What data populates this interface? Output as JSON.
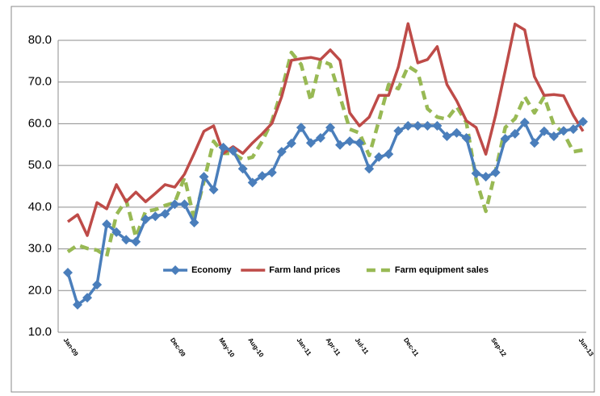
{
  "chart_data": {
    "type": "line",
    "categories": [
      "Jan-09",
      null,
      null,
      null,
      null,
      null,
      null,
      null,
      null,
      null,
      null,
      "Dec-09",
      null,
      null,
      null,
      null,
      "May-10",
      null,
      null,
      "Aug-10",
      null,
      null,
      null,
      null,
      "Jan-11",
      null,
      null,
      "Apr-11",
      null,
      null,
      "Jul-11",
      null,
      null,
      null,
      null,
      "Dec-11",
      null,
      null,
      null,
      null,
      null,
      null,
      null,
      null,
      "Sep-12",
      null,
      null,
      null,
      null,
      null,
      null,
      null,
      null,
      "Jun-13"
    ],
    "series": [
      {
        "name": "Economy",
        "color": "#4a7ebb",
        "marker": "diamond",
        "dashed": false,
        "values": [
          24.3,
          16.6,
          18.3,
          21.4,
          35.9,
          34.0,
          32.2,
          31.7,
          37.1,
          37.8,
          38.4,
          40.7,
          40.7,
          36.3,
          47.3,
          44.2,
          54.3,
          53.5,
          49.2,
          45.9,
          47.5,
          48.3,
          53.3,
          55.3,
          59.1,
          55.4,
          56.6,
          59.1,
          54.9,
          55.8,
          55.4,
          49.2,
          52.0,
          52.7,
          58.3,
          59.5,
          59.5,
          59.5,
          59.5,
          57.0,
          57.8,
          56.6,
          48.1,
          47.3,
          48.3,
          56.4,
          57.6,
          60.3,
          55.4,
          58.2,
          57.0,
          58.3,
          58.7,
          60.5
        ]
      },
      {
        "name": "Farm land prices",
        "color": "#be4b48",
        "marker": "none",
        "dashed": false,
        "values": [
          36.5,
          38.2,
          33.2,
          41.1,
          39.6,
          45.4,
          41.3,
          43.6,
          41.3,
          43.3,
          45.4,
          44.8,
          47.9,
          52.9,
          58.2,
          59.5,
          52.9,
          54.5,
          52.9,
          55.4,
          57.6,
          60.1,
          66.5,
          75.2,
          75.6,
          75.9,
          75.4,
          77.7,
          75.2,
          62.6,
          59.5,
          61.6,
          66.8,
          66.8,
          73.6,
          84.0,
          74.6,
          75.4,
          78.5,
          69.4,
          65.5,
          60.7,
          59.1,
          52.7,
          62.0,
          72.8,
          83.9,
          82.5,
          71.3,
          66.8,
          67.0,
          66.7,
          62.0,
          58.2
        ]
      },
      {
        "name": "Farm equipment sales",
        "color": "#98b954",
        "marker": "none",
        "dashed": true,
        "values": [
          29.3,
          30.9,
          30.1,
          29.7,
          28.2,
          38.2,
          41.7,
          32.8,
          39.0,
          39.4,
          40.4,
          41.1,
          47.1,
          37.1,
          46.2,
          55.8,
          52.9,
          52.9,
          51.4,
          52.0,
          55.8,
          60.7,
          68.0,
          77.1,
          74.2,
          65.5,
          75.2,
          74.2,
          66.5,
          58.7,
          57.8,
          52.4,
          60.7,
          69.4,
          68.4,
          73.8,
          72.3,
          63.6,
          61.6,
          61.1,
          64.1,
          60.3,
          46.7,
          39.0,
          48.7,
          59.1,
          61.2,
          66.5,
          62.6,
          66.5,
          59.7,
          57.8,
          53.3,
          53.7
        ]
      }
    ],
    "ylim": [
      10,
      80
    ],
    "yticks": [
      {
        "value": 10,
        "label": "10.0"
      },
      {
        "value": 20,
        "label": "20.0"
      },
      {
        "value": 30,
        "label": "30.0"
      },
      {
        "value": 40,
        "label": "40.0"
      },
      {
        "value": 50,
        "label": "50.0"
      },
      {
        "value": 60,
        "label": "60.0"
      },
      {
        "value": 70,
        "label": "70.0"
      },
      {
        "value": 80,
        "label": "80.0"
      }
    ],
    "grid": true,
    "legend": "center"
  }
}
